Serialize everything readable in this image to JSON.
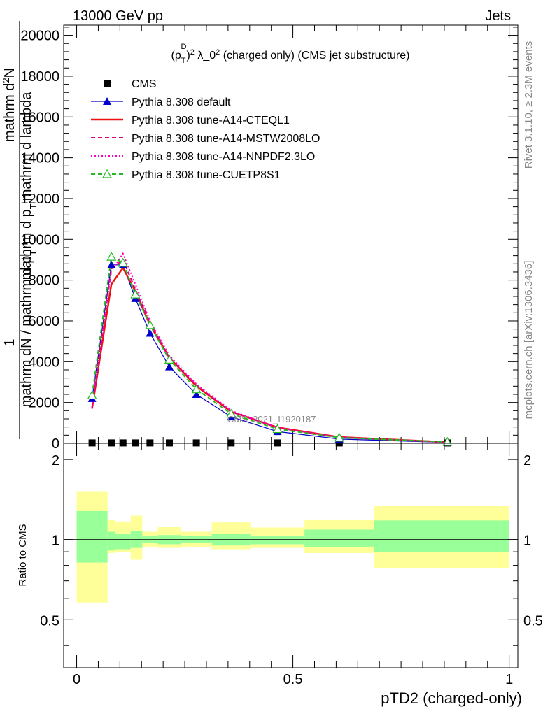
{
  "header": {
    "left": "13000 GeV pp",
    "right": "Jets"
  },
  "side": {
    "rivet": "Rivet 3.1.10, ≥ 2.3M events",
    "mcplots": "mcplots.cern.ch [arXiv:1306.3436]"
  },
  "chart_data": [
    {
      "type": "line",
      "title": "(p_T^D)^2 λ_0^2 (charged only) (CMS jet substructure)",
      "title_parts": {
        "p": "(p",
        "sub": "T",
        "sup1": "D",
        "mid": ")",
        "sup2": "2",
        "lambda": " λ_0",
        "sup3": "2",
        "rest": " (charged only) (CMS jet substructure)"
      },
      "ylabel_lines": [
        "mathrm d²N",
        "1",
        "mathrm dN / mathrm d p",
        "T",
        "mathrm d p",
        "T",
        "mathrm d lambda"
      ],
      "ylabel_parts": {
        "line1": "mathrm d",
        "line1_sup": "2",
        "line1_end": "N",
        "line2a": "mathrm d p",
        "line2_sub": "T",
        "line2b": "mathrm d lambda",
        "one": "1",
        "den_a": "mathrm dN / mathrm d p",
        "den_sub": "T"
      },
      "watermark": "CMS_2021_I1920187",
      "xlim": [
        -0.03,
        1.02
      ],
      "ylim": [
        0,
        20500
      ],
      "yticks_labeled": [
        0,
        2000,
        4000,
        6000,
        8000,
        10000,
        12000,
        14000,
        16000,
        18000,
        20000
      ],
      "ytick_labels": [
        "0",
        "2000",
        "4000",
        "6000",
        "8000",
        "10000",
        "12000",
        "14000",
        "16000",
        "18000",
        "20000"
      ],
      "legend_position": "top-left",
      "x": [
        0.0357,
        0.0804,
        0.1071,
        0.1357,
        0.1696,
        0.2143,
        0.2768,
        0.3571,
        0.4643,
        0.6071,
        0.8571
      ],
      "series": [
        {
          "name": "CMS",
          "style": "marker",
          "marker": "square",
          "color": "#000000",
          "values": [
            20,
            20,
            20,
            20,
            20,
            20,
            20,
            20,
            20,
            20,
            20
          ]
        },
        {
          "name": "Pythia 8.308 default",
          "style": "solid",
          "marker": "triangle",
          "color": "#0000cc",
          "values": [
            2200,
            8750,
            8750,
            7100,
            5400,
            3750,
            2400,
            1300,
            580,
            210,
            45
          ]
        },
        {
          "name": "Pythia 8.308 tune-A14-CTEQL1",
          "style": "solid-thick",
          "marker": "none",
          "color": "#ee1111",
          "values": [
            1700,
            7800,
            8600,
            7450,
            5800,
            4200,
            2800,
            1550,
            780,
            310,
            60
          ]
        },
        {
          "name": "Pythia 8.308 tune-A14-MSTW2008LO",
          "style": "dashed",
          "marker": "none",
          "color": "#dd0077",
          "values": [
            1750,
            8550,
            9000,
            7550,
            5900,
            4200,
            2850,
            1550,
            760,
            290,
            55
          ]
        },
        {
          "name": "Pythia 8.308 tune-A14-NNPDF2.3LO",
          "style": "dotted",
          "marker": "none",
          "color": "#ff00cc",
          "values": [
            1800,
            8450,
            9300,
            7800,
            6000,
            4300,
            2900,
            1600,
            780,
            290,
            55
          ]
        },
        {
          "name": "Pythia 8.308 tune-CUETP8S1",
          "style": "dashed",
          "marker": "open-triangle",
          "color": "#22bb22",
          "values": [
            2350,
            9150,
            8850,
            7300,
            5800,
            4100,
            2650,
            1450,
            700,
            280,
            70
          ]
        }
      ]
    },
    {
      "type": "area",
      "ylabel": "Ratio to CMS",
      "xlabel": "pTD2 (charged-only)",
      "xlim": [
        -0.03,
        1.02
      ],
      "ylim": [
        0.33,
        2.3
      ],
      "xticks": [
        0,
        0.5,
        1
      ],
      "xtick_labels": [
        "0",
        "0.5",
        "1"
      ],
      "yticks": [
        0.5,
        1,
        2
      ],
      "ytick_labels": [
        "0.5",
        "1",
        "2"
      ],
      "reference_line": 1,
      "bins": [
        {
          "lo": 0.0,
          "hi": 0.0714,
          "stat": [
            0.82,
            1.28
          ],
          "total": [
            0.58,
            1.52
          ]
        },
        {
          "lo": 0.0714,
          "hi": 0.0893,
          "stat": [
            0.91,
            1.07
          ],
          "total": [
            0.89,
            1.19
          ]
        },
        {
          "lo": 0.0893,
          "hi": 0.125,
          "stat": [
            0.92,
            1.05
          ],
          "total": [
            0.9,
            1.17
          ]
        },
        {
          "lo": 0.125,
          "hi": 0.1518,
          "stat": [
            0.93,
            1.08
          ],
          "total": [
            0.84,
            1.23
          ]
        },
        {
          "lo": 0.1518,
          "hi": 0.1875,
          "stat": [
            0.97,
            1.03
          ],
          "total": [
            0.94,
            1.07
          ]
        },
        {
          "lo": 0.1875,
          "hi": 0.2411,
          "stat": [
            0.96,
            1.04
          ],
          "total": [
            0.93,
            1.12
          ]
        },
        {
          "lo": 0.2411,
          "hi": 0.3125,
          "stat": [
            0.97,
            1.03
          ],
          "total": [
            0.94,
            1.07
          ]
        },
        {
          "lo": 0.3125,
          "hi": 0.4018,
          "stat": [
            0.95,
            1.05
          ],
          "total": [
            0.92,
            1.16
          ]
        },
        {
          "lo": 0.4018,
          "hi": 0.5268,
          "stat": [
            0.96,
            1.03
          ],
          "total": [
            0.93,
            1.11
          ]
        },
        {
          "lo": 0.5268,
          "hi": 0.6875,
          "stat": [
            0.94,
            1.09
          ],
          "total": [
            0.89,
            1.19
          ]
        },
        {
          "lo": 0.6875,
          "hi": 1.0,
          "stat": [
            0.9,
            1.18
          ],
          "total": [
            0.78,
            1.34
          ]
        }
      ]
    }
  ]
}
